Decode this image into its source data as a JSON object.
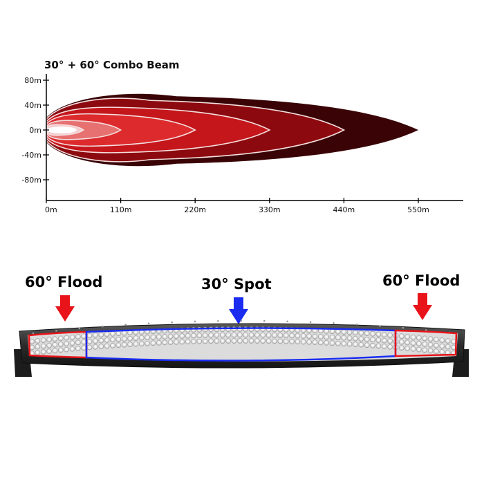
{
  "chart_data": {
    "type": "area",
    "title": "30° + 60° Combo Beam",
    "xlabel": "",
    "ylabel": "",
    "x_ticks": [
      0,
      110,
      220,
      330,
      440,
      550
    ],
    "x_tick_labels": [
      "0m",
      "110m",
      "220m",
      "330m",
      "440m",
      "550m"
    ],
    "y_ticks": [
      80,
      40,
      0,
      -40,
      -80
    ],
    "y_tick_labels": [
      "80m",
      "40m",
      "0m",
      "-40m",
      "-80m"
    ],
    "xlim": [
      0,
      620
    ],
    "ylim": [
      -100,
      100
    ],
    "grid": false,
    "legend": "none",
    "series": [
      {
        "reach": 550,
        "half_width": 57,
        "color": "#3a0406"
      },
      {
        "reach": 440,
        "half_width": 50,
        "color": "#8c0a0f"
      },
      {
        "reach": 330,
        "half_width": 38,
        "color": "#c4161b"
      },
      {
        "reach": 220,
        "half_width": 27,
        "color": "#dd2b2d"
      },
      {
        "reach": 110,
        "half_width": 16,
        "color": "#e77070"
      },
      {
        "reach": 55,
        "half_width": 9,
        "color": "#f6cccc"
      }
    ]
  },
  "labels": {
    "flood_left": "60° Flood",
    "spot": "30° Spot",
    "flood_right": "60° Flood"
  },
  "colors": {
    "flood": "#e8141a",
    "spot": "#1a2cf0"
  }
}
